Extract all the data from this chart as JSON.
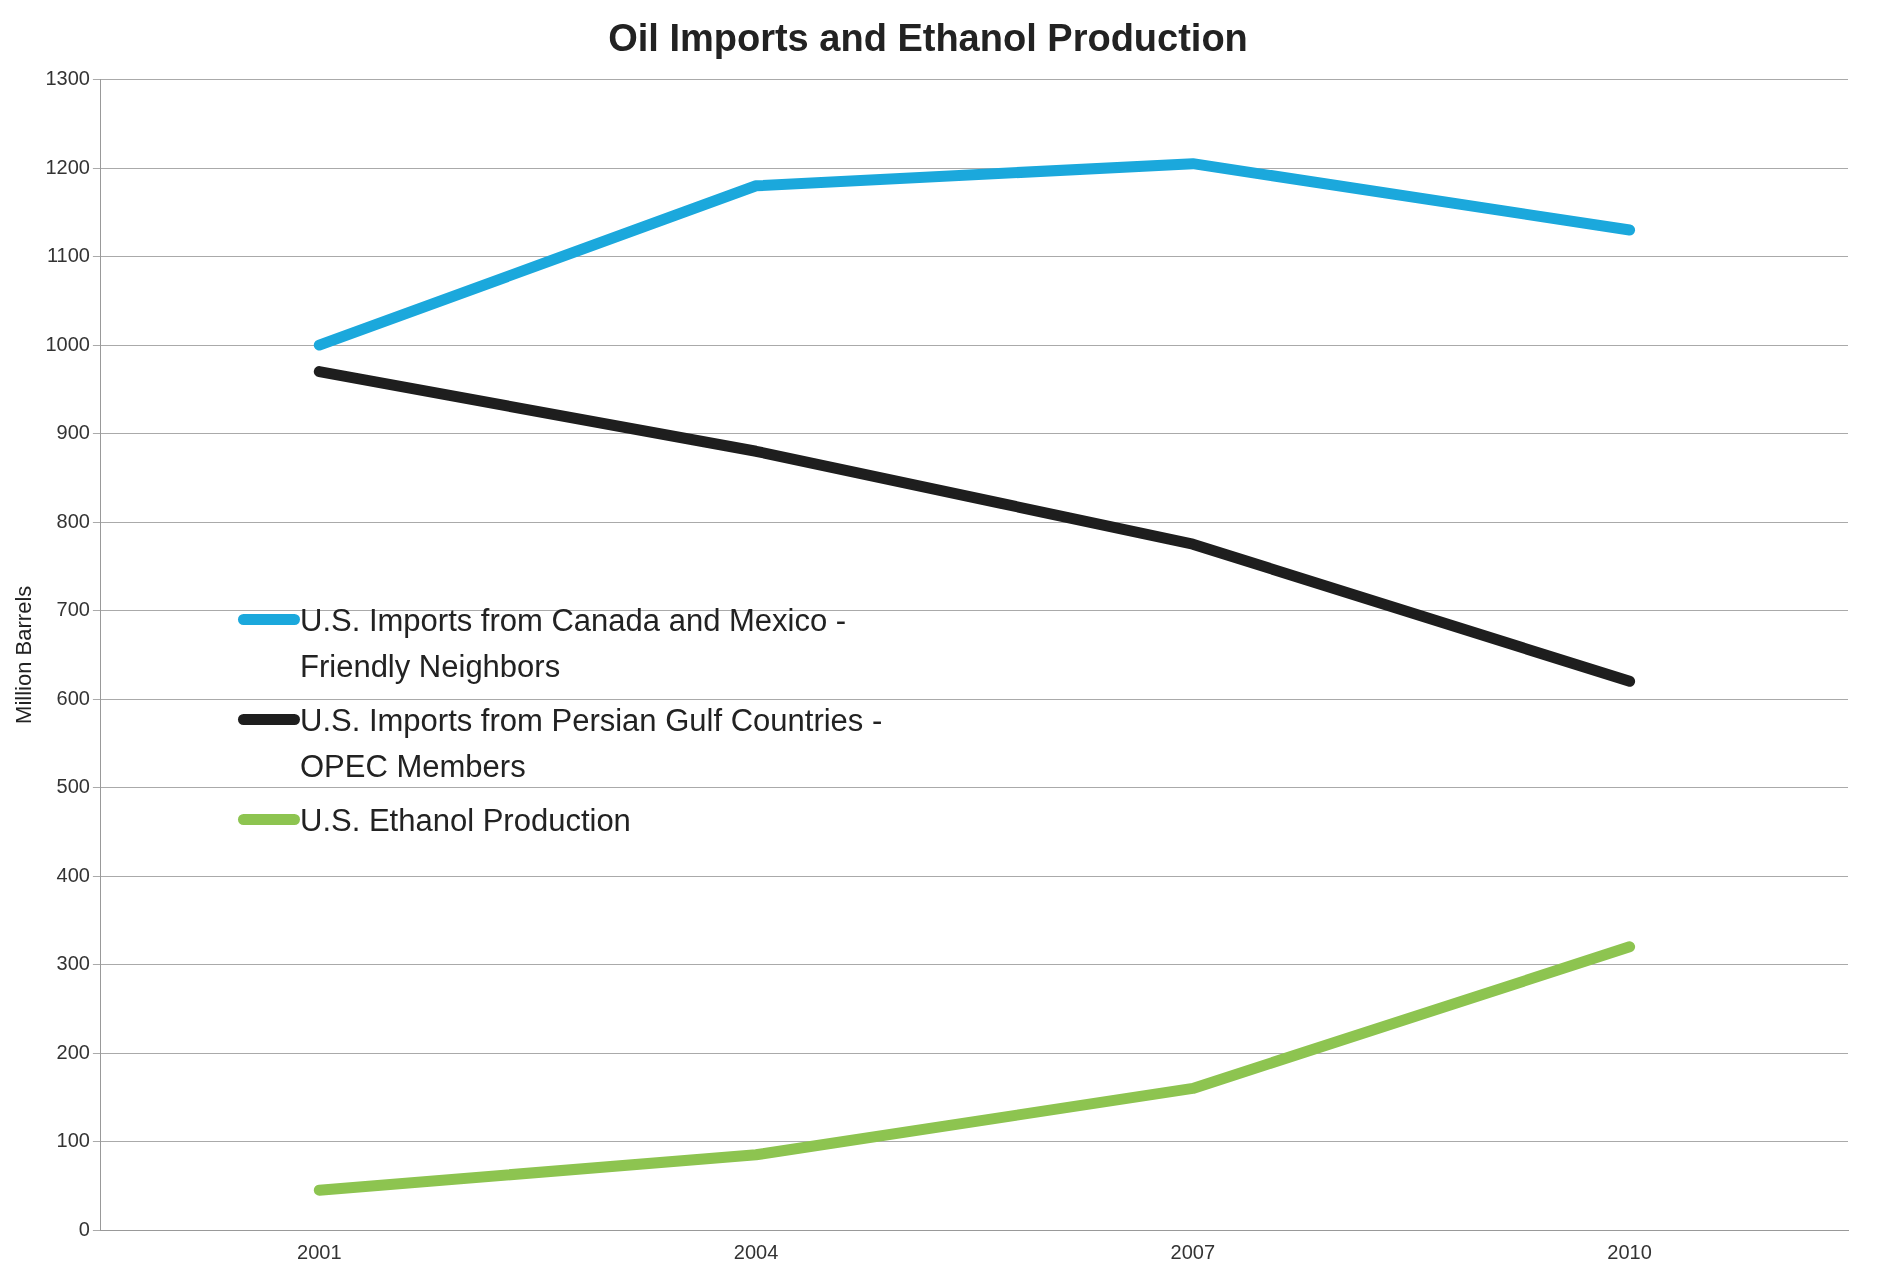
{
  "chart_data": {
    "type": "line",
    "title": "Oil Imports and Ethanol Production",
    "ylabel": "Million Barrels",
    "categories": [
      "2001",
      "2004",
      "2007",
      "2010"
    ],
    "ylim": [
      0,
      1300
    ],
    "yticks": [
      0,
      100,
      200,
      300,
      400,
      500,
      600,
      700,
      800,
      900,
      1000,
      1100,
      1200,
      1300
    ],
    "grid": "y",
    "legend": "left",
    "marker": "none",
    "line_style": "solid",
    "series": [
      {
        "name": "U.S. Imports from Canada and Mexico - Friendly Neighbors",
        "color": "#1ba8dc",
        "values": [
          1000,
          1180,
          1205,
          1130
        ]
      },
      {
        "name": "U.S. Imports from Persian Gulf Countries - OPEC Members",
        "color": "#1e1e1e",
        "values": [
          970,
          880,
          775,
          620
        ]
      },
      {
        "name": "U.S. Ethanol Production",
        "color": "#8dc450",
        "values": [
          45,
          85,
          160,
          320
        ]
      }
    ]
  }
}
